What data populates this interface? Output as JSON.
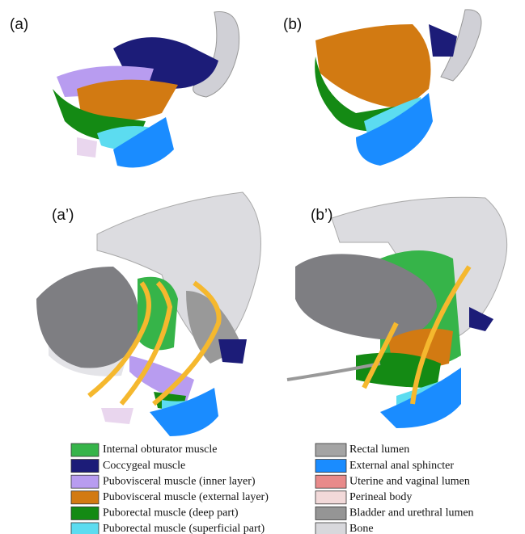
{
  "panels": {
    "a": "(a)",
    "b": "(b)",
    "a_prime": "(a’)",
    "b_prime": "(b’)"
  },
  "legend": {
    "left": [
      {
        "label": "Internal obturator muscle",
        "color": "#36b449"
      },
      {
        "label": "Coccygeal muscle",
        "color": "#1c1c78"
      },
      {
        "label": "Pubovisceral muscle (inner layer)",
        "color": "#b89cf0"
      },
      {
        "label": "Pubovisceral muscle (external layer)",
        "color": "#d27a12"
      },
      {
        "label": "Puborectal muscle (deep part)",
        "color": "#148a14"
      },
      {
        "label": "Puborectal muscle (superficial part)",
        "color": "#5cdcf0"
      }
    ],
    "right": [
      {
        "label": "Rectal lumen",
        "color": "#a4a4a4"
      },
      {
        "label": "External anal sphincter",
        "color": "#1a8cff"
      },
      {
        "label": "Uterine and vaginal lumen",
        "color": "#e88a8a"
      },
      {
        "label": "Perineal body",
        "color": "#f2d9d9"
      },
      {
        "label": "Bladder and urethral lumen",
        "color": "#959595"
      },
      {
        "label": "Bone",
        "color": "#d8d8dc"
      }
    ]
  }
}
